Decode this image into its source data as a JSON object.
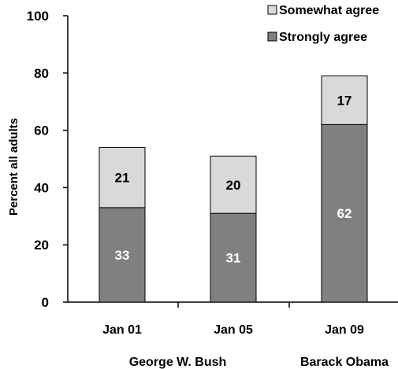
{
  "chart_data": {
    "type": "bar",
    "stacked": true,
    "categories": [
      "Jan 01",
      "Jan 05",
      "Jan 09"
    ],
    "groups": [
      {
        "label": "George W. Bush",
        "categories": [
          "Jan 01",
          "Jan 05"
        ]
      },
      {
        "label": "Barack Obama",
        "categories": [
          "Jan 09"
        ]
      }
    ],
    "series": [
      {
        "name": "Strongly agree",
        "values": [
          33,
          31,
          62
        ],
        "color": "#808080",
        "label_color": "#ffffff"
      },
      {
        "name": "Somewhat agree",
        "values": [
          21,
          20,
          17
        ],
        "color": "#d9d9d9",
        "label_color": "#000000"
      }
    ],
    "ylabel": "Percent all adults",
    "ylim": [
      0,
      100
    ],
    "yticks": [
      "0",
      "20",
      "40",
      "60",
      "80",
      "100"
    ],
    "legend": {
      "position": "top-right",
      "order": [
        "Somewhat agree",
        "Strongly agree"
      ]
    },
    "grid": false
  }
}
